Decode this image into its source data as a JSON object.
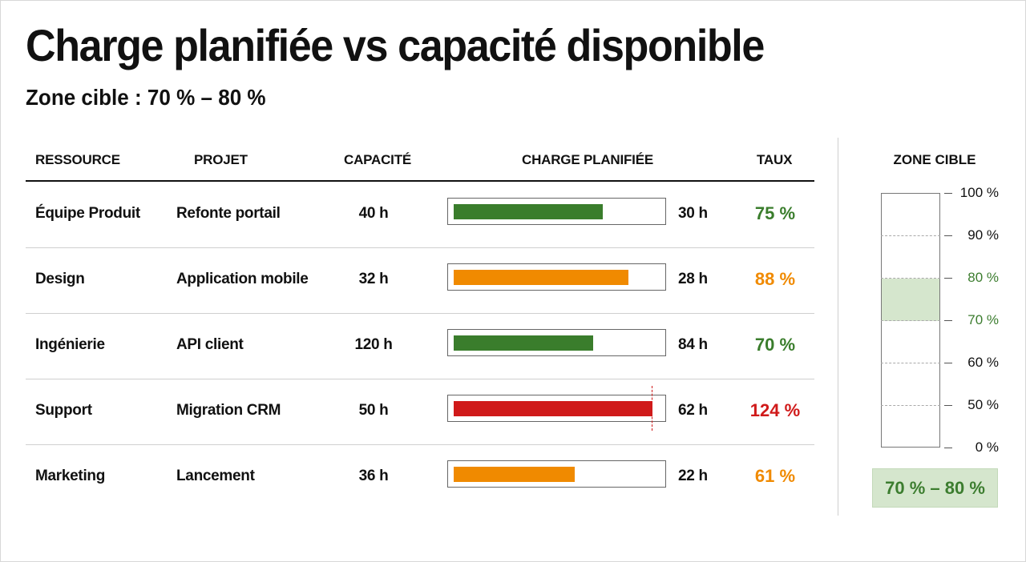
{
  "header": {
    "title": "Charge planifiée vs capacité disponible",
    "subtitle": "Zone cible : 70 % – 80 %"
  },
  "table": {
    "columns": {
      "resource": "RESSOURCE",
      "project": "PROJET",
      "capacity": "CAPACITÉ",
      "load": "CHARGE PLANIFIÉE",
      "rate": "TAUX"
    }
  },
  "chart_data": {
    "type": "bar",
    "orientation": "horizontal",
    "rows": [
      {
        "resource": "Équipe Produit",
        "project": "Refonte portail",
        "capacity_label": "40 h",
        "load_label": "30 h",
        "rate_label": "75 %",
        "rate": 75,
        "status": "in-target",
        "color": "#3a7d2c"
      },
      {
        "resource": "Design",
        "project": "Application mobile",
        "capacity_label": "32 h",
        "load_label": "28 h",
        "rate_label": "88 %",
        "rate": 88,
        "status": "above-target",
        "color": "#f08a00"
      },
      {
        "resource": "Ingénierie",
        "project": "API client",
        "capacity_label": "120 h",
        "load_label": "84 h",
        "rate_label": "70 %",
        "rate": 70,
        "status": "in-target",
        "color": "#3a7d2c"
      },
      {
        "resource": "Support",
        "project": "Migration CRM",
        "capacity_label": "50 h",
        "load_label": "62 h",
        "rate_label": "124 %",
        "rate": 124,
        "status": "overloaded",
        "color": "#d01a1a"
      },
      {
        "resource": "Marketing",
        "project": "Lancement",
        "capacity_label": "36 h",
        "load_label": "22 h",
        "rate_label": "61 %",
        "rate": 61,
        "status": "below-target",
        "color": "#f08a00"
      }
    ],
    "gauge": {
      "title": "ZONE CIBLE",
      "ticks": [
        {
          "value": 100,
          "label": "100 %"
        },
        {
          "value": 90,
          "label": "90 %"
        },
        {
          "value": 80,
          "label": "80 %"
        },
        {
          "value": 70,
          "label": "70 %"
        },
        {
          "value": 60,
          "label": "60 %"
        },
        {
          "value": 50,
          "label": "50 %"
        },
        {
          "value": 0,
          "label": "0 %"
        }
      ],
      "target_min": 70,
      "target_max": 80,
      "target_label": "70 % – 80 %",
      "target_color": "#3c7d2f"
    }
  }
}
